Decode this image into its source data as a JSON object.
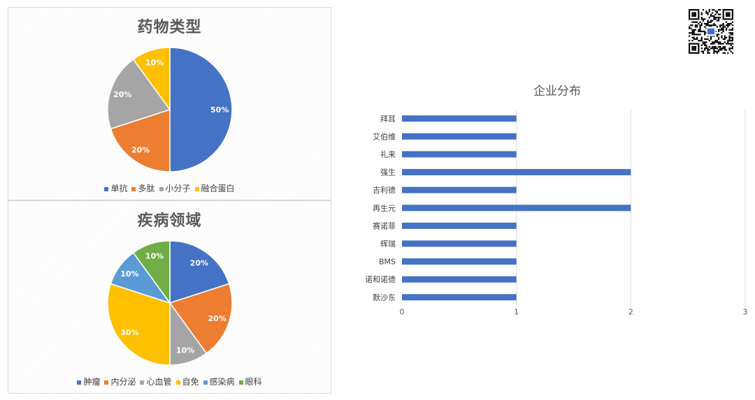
{
  "chart_data": [
    {
      "type": "pie",
      "title": "药物类型",
      "labels": [
        "单抗",
        "多肽",
        "小分子",
        "融合蛋白"
      ],
      "values": [
        50,
        20,
        20,
        10
      ],
      "value_labels": [
        "50%",
        "20%",
        "20%",
        "10%"
      ],
      "colors": [
        "#4472C4",
        "#ED7D31",
        "#A5A5A5",
        "#FFC000"
      ],
      "legend": "bottom"
    },
    {
      "type": "pie",
      "title": "疾病领域",
      "labels": [
        "肿瘤",
        "内分泌",
        "心血管",
        "自免",
        "感染病",
        "眼科"
      ],
      "values": [
        20,
        20,
        10,
        30,
        10,
        10
      ],
      "value_labels": [
        "20%",
        "20%",
        "10%",
        "30%",
        "10%",
        "10%"
      ],
      "colors": [
        "#4472C4",
        "#ED7D31",
        "#A5A5A5",
        "#FFC000",
        "#5B9BD5",
        "#70AD47"
      ],
      "legend": "bottom"
    },
    {
      "type": "bar",
      "orientation": "horizontal",
      "title": "企业分布",
      "categories": [
        "拜耳",
        "艾伯维",
        "礼来",
        "强生",
        "吉利德",
        "再生元",
        "赛诺菲",
        "辉瑞",
        "BMS",
        "诺和诺德",
        "默沙东"
      ],
      "values": [
        1,
        1,
        1,
        2,
        1,
        2,
        1,
        1,
        1,
        1,
        1
      ],
      "xlim": [
        0,
        3
      ],
      "xticks": [
        "0",
        "1",
        "2",
        "3"
      ],
      "color": "#4472C4",
      "grid": true,
      "legend": "none"
    }
  ],
  "qr_code": {
    "icon": "qr-code-icon"
  }
}
